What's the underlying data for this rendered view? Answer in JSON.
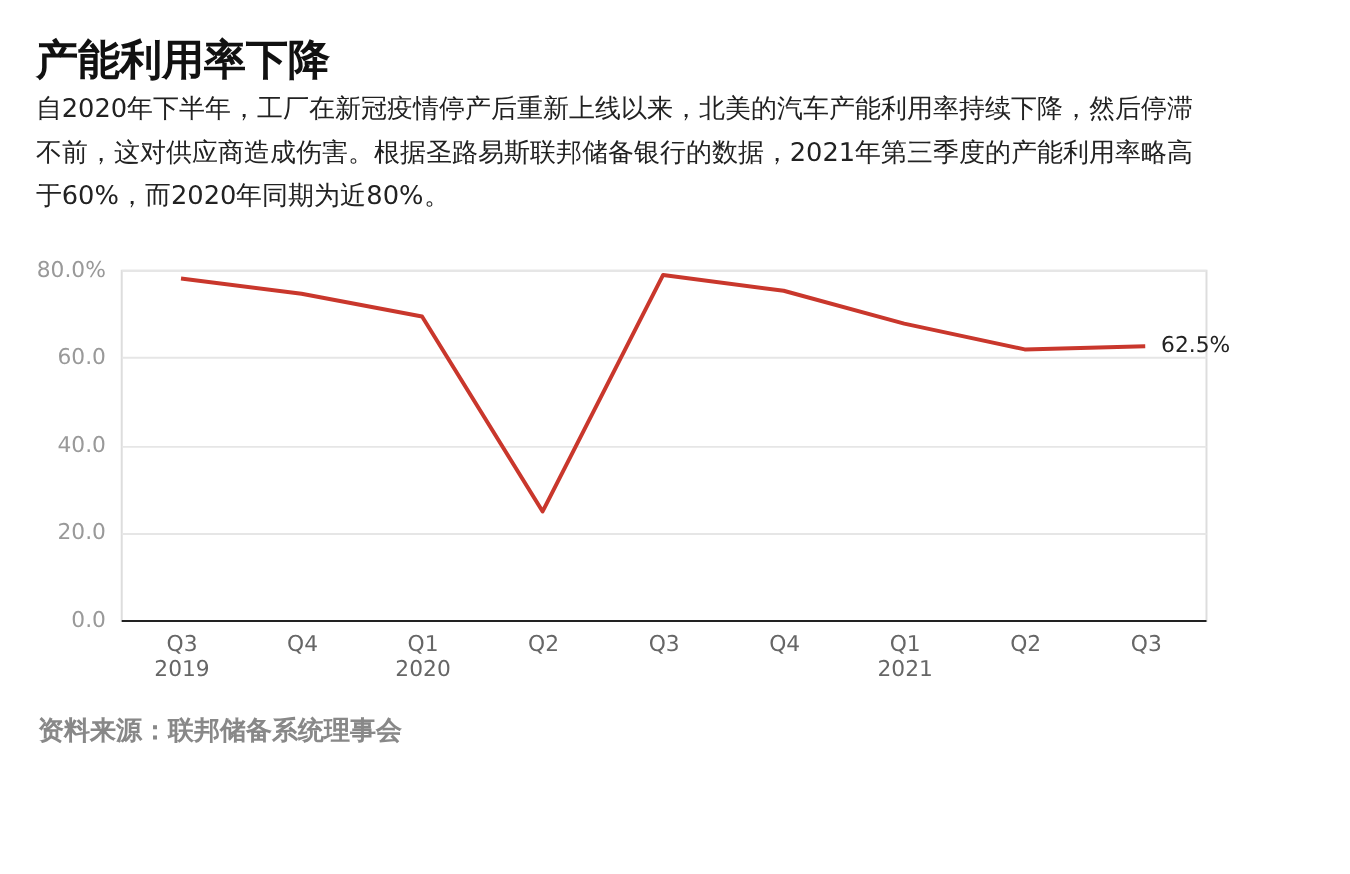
{
  "chart_data": {
    "type": "line",
    "title": "产能利用率下降",
    "subtitle": "自2020年下半年，工厂在新冠疫情停产后重新上线以来，北美的汽车产能利用率持续下降，然后停滞不前，这对供应商造成伤害。根据圣路易斯联邦储备银行的数据，2021年第三季度的产能利用率略高于60%，而2020年同期为近80%。",
    "annotations": [
      "资料来源：联邦储备系统理事会"
    ],
    "categories": [
      "Q3 2019",
      "Q4",
      "Q1 2020",
      "Q2",
      "Q3",
      "Q4",
      "Q1 2021",
      "Q2",
      "Q3"
    ],
    "series": [
      {
        "color": "#c9372c",
        "values": [
          78,
          74.5,
          69.3,
          24.8,
          78.8,
          75.2,
          67.7,
          61.8,
          62.5
        ],
        "value_labels": [
          null,
          null,
          null,
          null,
          null,
          null,
          null,
          null,
          "62.5%"
        ]
      }
    ],
    "ylim": [
      0,
      80
    ],
    "yticks": [
      {
        "value": 0,
        "label": "0.0"
      },
      {
        "value": 20,
        "label": "20.0"
      },
      {
        "value": 40,
        "label": "40.0"
      },
      {
        "value": 60,
        "label": "60.0"
      },
      {
        "value": 80,
        "label": "80.0%"
      }
    ],
    "grid": "y",
    "marker": "none",
    "line_style": "solid"
  }
}
